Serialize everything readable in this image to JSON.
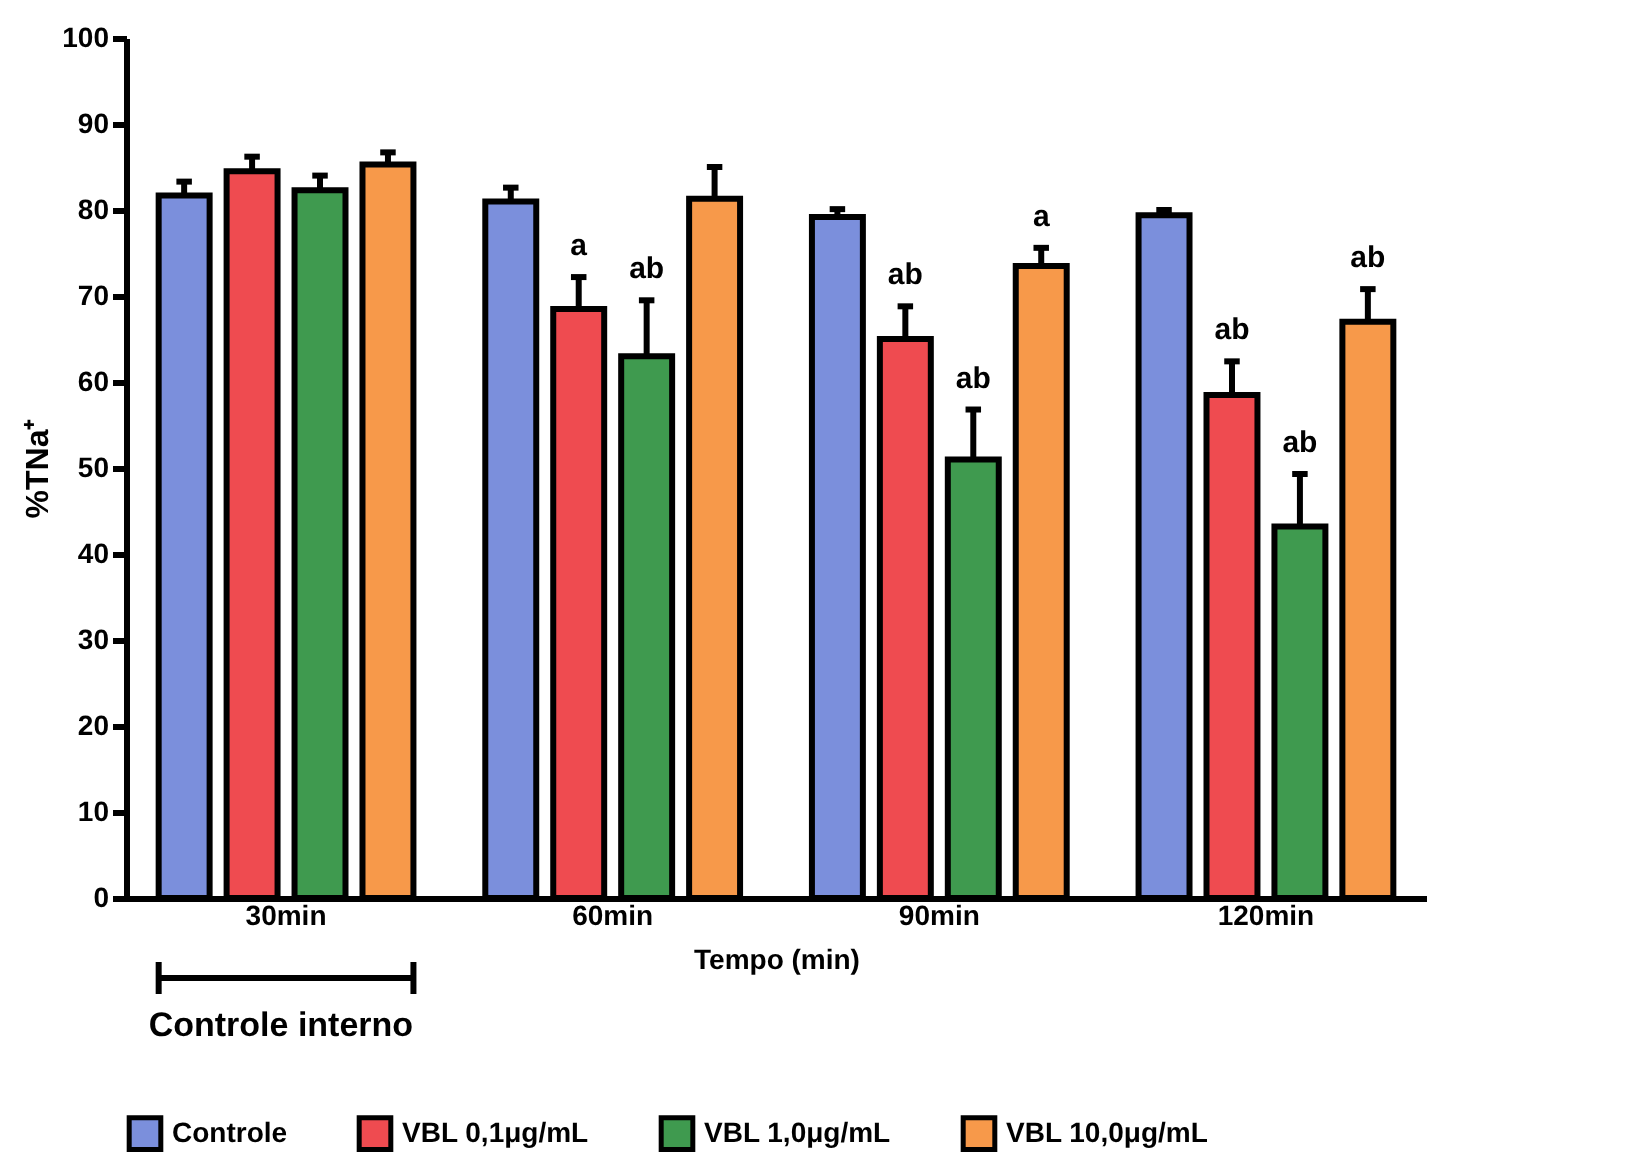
{
  "chart_data": {
    "type": "bar",
    "xlabel": "Tempo (min)",
    "ylabel": "%TNa⁺",
    "categories": [
      "30min",
      "60min",
      "90min",
      "120min"
    ],
    "series": [
      {
        "name": "Controle",
        "color": "#7b8fdc",
        "values": [
          81.7,
          81,
          79.2,
          79.4
        ],
        "errors": [
          [
            81.7,
            83.3
          ],
          [
            81,
            82.6
          ],
          [
            79.2,
            80.1
          ],
          [
            79.4,
            80
          ]
        ]
      },
      {
        "name": "VBL 0,1μg/mL",
        "color": "#ef4b50",
        "values": [
          84.5,
          68.5,
          65,
          58.5
        ],
        "errors": [
          [
            84.5,
            86.2
          ],
          [
            68.5,
            72.2
          ],
          [
            65,
            68.8
          ],
          [
            58.5,
            62.4
          ]
        ],
        "value_labels": [
          null,
          "a",
          "ab",
          "ab"
        ]
      },
      {
        "name": "VBL 1,0μg/mL",
        "color": "#3f9a4f",
        "values": [
          82.3,
          63,
          51,
          43.2
        ],
        "errors": [
          [
            82.3,
            84
          ],
          [
            63,
            69.5
          ],
          [
            51,
            56.8
          ],
          [
            43.2,
            49.3
          ]
        ],
        "value_labels": [
          null,
          "ab",
          "ab",
          "ab"
        ]
      },
      {
        "name": "VBL 10,0μg/mL",
        "color": "#f7994a",
        "values": [
          85.3,
          81.3,
          73.5,
          67
        ],
        "errors": [
          [
            85.3,
            86.7
          ],
          [
            81.3,
            85
          ],
          [
            73.5,
            75.6
          ],
          [
            67,
            70.8
          ]
        ],
        "value_labels": [
          null,
          null,
          "a",
          "ab"
        ]
      }
    ],
    "annotations": [
      "Controle interno"
    ],
    "ylim": [
      0,
      100
    ],
    "yticks": [
      0,
      10,
      20,
      30,
      40,
      50,
      60,
      70,
      80,
      90,
      100
    ],
    "grid": false,
    "legend": "bottom"
  }
}
